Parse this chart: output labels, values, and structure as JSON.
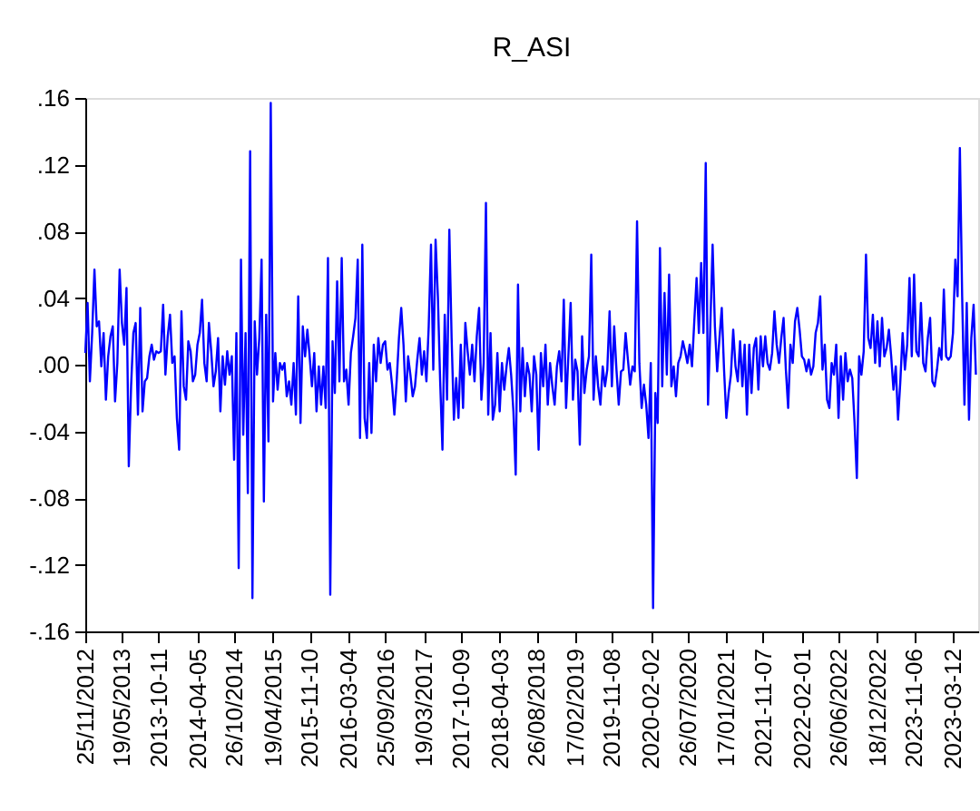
{
  "chart_data": {
    "type": "line",
    "title": "R_ASI",
    "categories": [
      "25/11/2012",
      null,
      null,
      null,
      null,
      null,
      null,
      null,
      null,
      null,
      null,
      null,
      null,
      null,
      null,
      null,
      "19/05/2013",
      null,
      null,
      null,
      null,
      null,
      null,
      null,
      null,
      null,
      null,
      null,
      null,
      null,
      null,
      null,
      "2013-10-11",
      null,
      null,
      null,
      null,
      null,
      null,
      null,
      null,
      null,
      null,
      null,
      null,
      null,
      null,
      null,
      null,
      "2014-04-05",
      null,
      null,
      null,
      null,
      null,
      null,
      null,
      null,
      null,
      null,
      null,
      null,
      null,
      null,
      null,
      "26/10/2014",
      null,
      null,
      null,
      null,
      null,
      null,
      null,
      null,
      null,
      null,
      null,
      null,
      null,
      null,
      null,
      null,
      "19/04/2015",
      null,
      null,
      null,
      null,
      null,
      null,
      null,
      null,
      null,
      null,
      null,
      null,
      null,
      null,
      null,
      "2015-11-10",
      null,
      null,
      null,
      null,
      null,
      null,
      null,
      null,
      null,
      null,
      null,
      null,
      null,
      null,
      null,
      null,
      "2016-03-04",
      null,
      null,
      null,
      null,
      null,
      null,
      null,
      null,
      null,
      null,
      null,
      null,
      null,
      null,
      null,
      "25/09/2016",
      null,
      null,
      null,
      null,
      null,
      null,
      null,
      null,
      null,
      null,
      null,
      null,
      null,
      null,
      null,
      null,
      "19/03/2017",
      null,
      null,
      null,
      null,
      null,
      null,
      null,
      null,
      null,
      null,
      null,
      null,
      null,
      null,
      null,
      "2017-10-09",
      null,
      null,
      null,
      null,
      null,
      null,
      null,
      null,
      null,
      null,
      null,
      null,
      null,
      null,
      null,
      null,
      "2018-04-03",
      null,
      null,
      null,
      null,
      null,
      null,
      null,
      null,
      null,
      null,
      null,
      null,
      null,
      null,
      null,
      "26/08/2018",
      null,
      null,
      null,
      null,
      null,
      null,
      null,
      null,
      null,
      null,
      null,
      null,
      null,
      null,
      null,
      null,
      "17/02/2019",
      null,
      null,
      null,
      null,
      null,
      null,
      null,
      null,
      null,
      null,
      null,
      null,
      null,
      null,
      null,
      "2019-11-08",
      null,
      null,
      null,
      null,
      null,
      null,
      null,
      null,
      null,
      null,
      null,
      null,
      null,
      null,
      null,
      null,
      "2020-02-02",
      null,
      null,
      null,
      null,
      null,
      null,
      null,
      null,
      null,
      null,
      null,
      null,
      null,
      null,
      null,
      "26/07/2020",
      null,
      null,
      null,
      null,
      null,
      null,
      null,
      null,
      null,
      null,
      null,
      null,
      null,
      null,
      null,
      null,
      "17/01/2021",
      null,
      null,
      null,
      null,
      null,
      null,
      null,
      null,
      null,
      null,
      null,
      null,
      null,
      null,
      null,
      "2021-11-07",
      null,
      null,
      null,
      null,
      null,
      null,
      null,
      null,
      null,
      null,
      null,
      null,
      null,
      null,
      null,
      null,
      "2022-02-01",
      null,
      null,
      null,
      null,
      null,
      null,
      null,
      null,
      null,
      null,
      null,
      null,
      null,
      null,
      null,
      "26/06/2022",
      null,
      null,
      null,
      null,
      null,
      null,
      null,
      null,
      null,
      null,
      null,
      null,
      null,
      null,
      null,
      null,
      "18/12/2022",
      null,
      null,
      null,
      null,
      null,
      null,
      null,
      null,
      null,
      null,
      null,
      null,
      null,
      null,
      null,
      "2023-11-06",
      null,
      null,
      null,
      null,
      null,
      null,
      null,
      null,
      null,
      null,
      null,
      null,
      null,
      null,
      null,
      null,
      "2023-03-12",
      null,
      null,
      null,
      null,
      null,
      null,
      null,
      null,
      null,
      null
    ],
    "series": [
      {
        "color": "#0000ff",
        "values": [
          0.007,
          0.037,
          -0.01,
          0.019,
          0.057,
          0.023,
          0.026,
          -0.001,
          0.019,
          -0.021,
          0.005,
          0.017,
          0.023,
          -0.022,
          0.001,
          0.057,
          0.025,
          0.012,
          0.046,
          -0.061,
          -0.013,
          0.019,
          0.025,
          -0.03,
          0.034,
          -0.028,
          -0.01,
          -0.008,
          0.005,
          0.012,
          0.003,
          0.008,
          0.007,
          0.008,
          0.036,
          -0.006,
          0.017,
          0.03,
          0.001,
          0.005,
          -0.032,
          -0.051,
          0.032,
          -0.013,
          -0.021,
          0.014,
          0.008,
          -0.01,
          -0.006,
          0.012,
          0.019,
          0.039,
          0.001,
          -0.01,
          0.025,
          0.008,
          -0.013,
          -0.004,
          0.016,
          -0.028,
          0.005,
          -0.012,
          0.008,
          -0.006,
          0.005,
          -0.057,
          0.019,
          -0.122,
          0.063,
          -0.042,
          0.019,
          -0.077,
          0.128,
          -0.14,
          0.026,
          -0.006,
          0.016,
          0.063,
          -0.082,
          0.03,
          -0.046,
          0.157,
          -0.022,
          0.007,
          -0.015,
          0.001,
          -0.003,
          0.001,
          -0.019,
          -0.01,
          -0.024,
          0.001,
          -0.03,
          0.041,
          -0.035,
          0.023,
          0.005,
          0.021,
          0.005,
          -0.013,
          0.007,
          -0.028,
          -0.001,
          -0.024,
          -0.001,
          -0.026,
          0.064,
          -0.138,
          0.014,
          -0.017,
          0.05,
          -0.01,
          0.064,
          -0.01,
          -0.003,
          -0.024,
          0.007,
          0.017,
          0.028,
          0.063,
          -0.044,
          0.072,
          -0.032,
          -0.044,
          0.001,
          -0.041,
          0.012,
          -0.01,
          0.016,
          0.001,
          0.012,
          0.014,
          -0.003,
          0.001,
          -0.012,
          -0.03,
          -0.01,
          0.016,
          0.034,
          0.012,
          -0.022,
          0.005,
          -0.006,
          -0.019,
          -0.013,
          0.003,
          0.016,
          -0.006,
          0.008,
          -0.01,
          0.023,
          0.072,
          -0.003,
          0.075,
          0.041,
          -0.01,
          -0.051,
          0.03,
          -0.021,
          0.081,
          0.016,
          -0.033,
          -0.008,
          -0.032,
          0.012,
          -0.026,
          0.025,
          0.008,
          -0.006,
          0.012,
          -0.01,
          0.017,
          0.034,
          -0.021,
          0.001,
          0.097,
          -0.03,
          0.019,
          -0.033,
          -0.024,
          0.007,
          -0.028,
          0.001,
          -0.015,
          -0.001,
          0.01,
          -0.006,
          -0.028,
          -0.066,
          0.048,
          -0.028,
          0.01,
          -0.019,
          0.001,
          -0.006,
          -0.028,
          0.005,
          -0.006,
          -0.051,
          0.007,
          -0.013,
          0.012,
          -0.024,
          0.001,
          -0.013,
          -0.024,
          -0.001,
          0.008,
          -0.01,
          0.039,
          -0.026,
          0.005,
          0.037,
          -0.021,
          0.003,
          -0.004,
          -0.048,
          0.017,
          -0.017,
          -0.003,
          0.005,
          0.066,
          -0.021,
          0.005,
          -0.013,
          -0.024,
          -0.001,
          -0.013,
          -0.003,
          0.032,
          -0.013,
          0.023,
          -0.003,
          -0.024,
          -0.004,
          -0.003,
          0.019,
          0.003,
          -0.012,
          -0.001,
          -0.004,
          0.086,
          0.001,
          -0.026,
          -0.012,
          -0.024,
          -0.044,
          0.001,
          -0.146,
          -0.017,
          -0.035,
          0.07,
          -0.013,
          0.043,
          -0.006,
          0.054,
          -0.013,
          -0.001,
          -0.019,
          0.001,
          0.005,
          0.014,
          0.008,
          0.001,
          0.012,
          -0.001,
          0.026,
          0.052,
          0.019,
          0.061,
          0.019,
          0.121,
          -0.024,
          0.023,
          0.072,
          0.023,
          -0.004,
          0.016,
          0.034,
          -0.003,
          -0.032,
          -0.017,
          -0.006,
          0.021,
          -0.001,
          -0.01,
          0.014,
          -0.013,
          0.012,
          -0.03,
          0.012,
          -0.017,
          0.01,
          0.016,
          -0.015,
          0.017,
          -0.001,
          0.017,
          0.001,
          -0.003,
          0.007,
          0.032,
          0.012,
          0.001,
          0.016,
          0.028,
          -0.003,
          -0.026,
          0.012,
          0.001,
          0.026,
          0.034,
          0.021,
          0.005,
          0.003,
          -0.004,
          0.003,
          -0.006,
          -0.001,
          0.019,
          0.025,
          0.041,
          -0.003,
          0.012,
          -0.021,
          -0.026,
          0.001,
          -0.006,
          0.012,
          -0.032,
          0.005,
          -0.021,
          0.007,
          -0.01,
          -0.003,
          -0.008,
          -0.035,
          -0.068,
          0.005,
          -0.006,
          0.008,
          0.066,
          0.016,
          0.01,
          0.03,
          0.001,
          0.026,
          -0.001,
          0.028,
          0.005,
          0.01,
          0.021,
          0.005,
          -0.015,
          -0.001,
          -0.033,
          -0.01,
          0.019,
          -0.003,
          0.012,
          0.052,
          0.005,
          0.054,
          0.008,
          0.005,
          0.037,
          0.001,
          -0.004,
          0.016,
          0.028,
          -0.01,
          -0.013,
          -0.003,
          0.01,
          0.003,
          0.045,
          0.005,
          0.003,
          0.005,
          0.019,
          0.063,
          0.041,
          0.13,
          0.041,
          -0.024,
          0.037,
          -0.033,
          0.016,
          0.036,
          -0.006
        ]
      }
    ],
    "ylim": [
      -0.16,
      0.16
    ],
    "yticks": [
      {
        "value": -0.16,
        "label": "-.16"
      },
      {
        "value": -0.12,
        "label": "-.12"
      },
      {
        "value": -0.08,
        "label": "-.08"
      },
      {
        "value": -0.04,
        "label": "-.04"
      },
      {
        "value": 0,
        "label": ".00"
      },
      {
        "value": 0.04,
        "label": ".04"
      },
      {
        "value": 0.08,
        "label": ".08"
      },
      {
        "value": 0.12,
        "label": ".12"
      },
      {
        "value": 0.16,
        "label": ".16"
      }
    ]
  }
}
